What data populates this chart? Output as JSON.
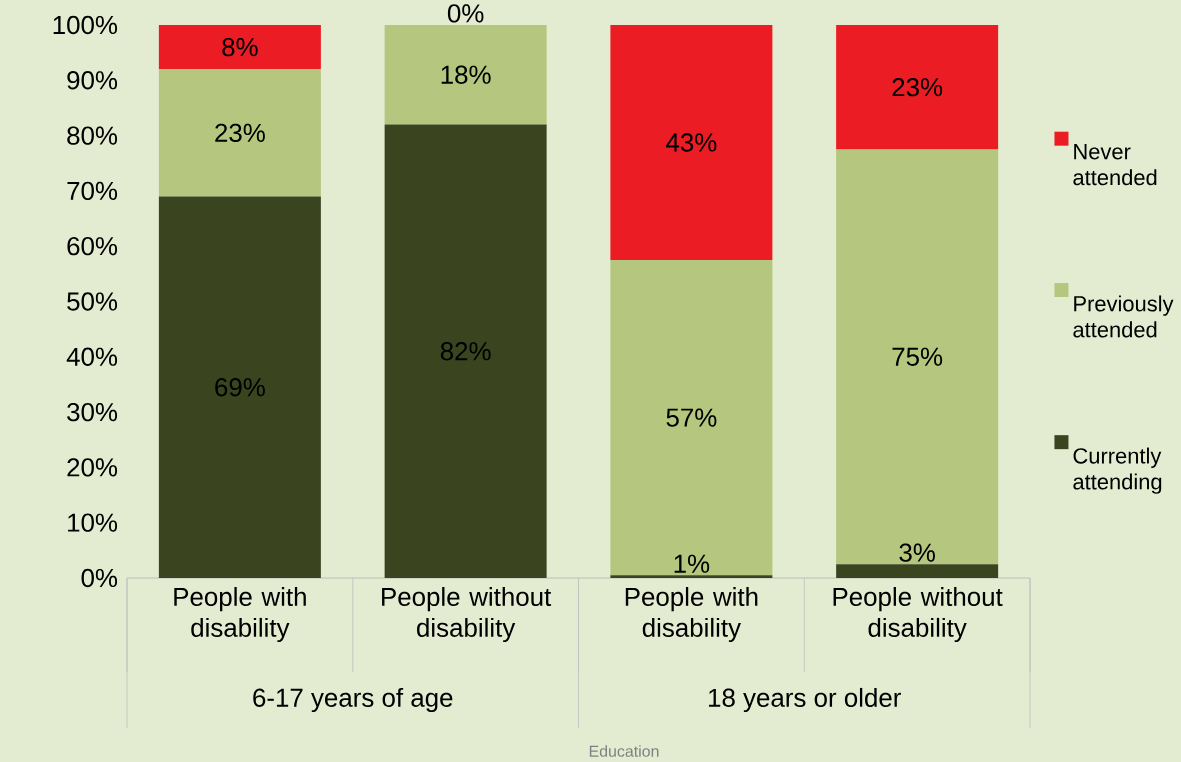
{
  "chart_data": {
    "type": "bar",
    "stacked": true,
    "categories": [
      "People with disability",
      "People without disability",
      "People with disability",
      "People without disability"
    ],
    "series": [
      {
        "name": "Currently attending",
        "color": "#3a4520",
        "values": [
          69,
          82,
          0.5,
          2.5
        ],
        "value_labels": [
          "69%",
          "82%",
          "1%",
          "3%"
        ]
      },
      {
        "name": "Previously attended",
        "color": "#b5c77e",
        "values": [
          23,
          18,
          57,
          75
        ],
        "value_labels": [
          "23%",
          "18%",
          "57%",
          "75%"
        ]
      },
      {
        "name": "Never attended",
        "color": "#ec1c24",
        "values": [
          8,
          0,
          42.5,
          22.5
        ],
        "value_labels": [
          "8%",
          "0%",
          "43%",
          "23%"
        ]
      }
    ],
    "ylim": [
      0,
      100
    ],
    "yticks": [
      {
        "value": 0,
        "label": "0%"
      },
      {
        "value": 10,
        "label": "10%"
      },
      {
        "value": 20,
        "label": "20%"
      },
      {
        "value": 30,
        "label": "30%"
      },
      {
        "value": 40,
        "label": "40%"
      },
      {
        "value": 50,
        "label": "50%"
      },
      {
        "value": 60,
        "label": "60%"
      },
      {
        "value": 70,
        "label": "70%"
      },
      {
        "value": 80,
        "label": "80%"
      },
      {
        "value": 90,
        "label": "90%"
      },
      {
        "value": 100,
        "label": "100%"
      }
    ],
    "grid": false,
    "legend": "right",
    "annotations": [
      "6-17 years of age",
      "18 years or older",
      "Education"
    ]
  }
}
